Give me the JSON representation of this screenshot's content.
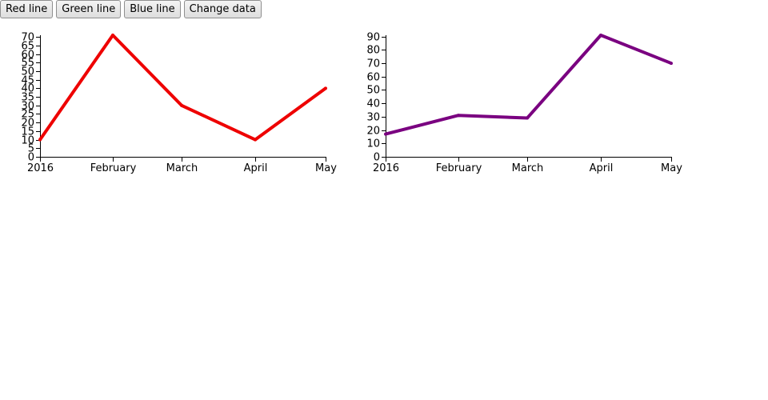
{
  "toolbar": {
    "buttons": [
      {
        "label": "Red line"
      },
      {
        "label": "Green line"
      },
      {
        "label": "Blue line"
      },
      {
        "label": "Change data"
      }
    ]
  },
  "chart_data": [
    {
      "type": "line",
      "categories": [
        "2016",
        "February",
        "March",
        "April",
        "May"
      ],
      "values": [
        10,
        71,
        30,
        10,
        40
      ],
      "yticks": [
        0,
        5,
        10,
        15,
        20,
        25,
        30,
        35,
        40,
        45,
        50,
        55,
        60,
        65,
        70
      ],
      "ylim": [
        0,
        71
      ],
      "color": "#ee0000",
      "grid": false
    },
    {
      "type": "line",
      "categories": [
        "2016",
        "February",
        "March",
        "April",
        "May"
      ],
      "values": [
        17,
        31,
        29,
        91,
        70
      ],
      "yticks": [
        0,
        10,
        20,
        30,
        40,
        50,
        60,
        70,
        80,
        90
      ],
      "ylim": [
        0,
        91
      ],
      "color": "#7a0080",
      "grid": false
    }
  ]
}
